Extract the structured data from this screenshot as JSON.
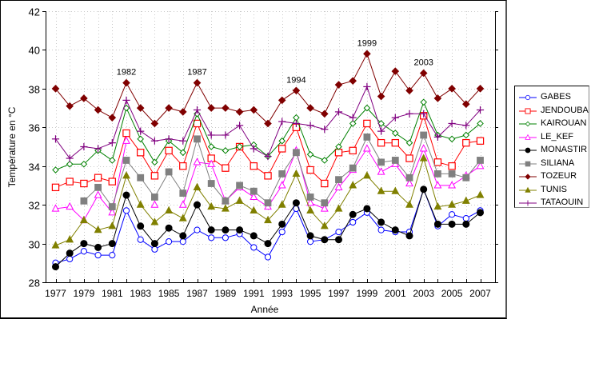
{
  "chart_data": {
    "type": "line",
    "title": "",
    "xlabel": "Année",
    "ylabel": "Température en °C",
    "xlim": [
      1977,
      2007
    ],
    "ylim": [
      28,
      42
    ],
    "x_ticks": [
      "1977",
      "1979",
      "1981",
      "1983",
      "1985",
      "1987",
      "1989",
      "1991",
      "1993",
      "1995",
      "1997",
      "1999",
      "2001",
      "2003",
      "2005",
      "2007"
    ],
    "y_ticks": [
      "28",
      "30",
      "32",
      "34",
      "36",
      "38",
      "40",
      "42"
    ],
    "grid": true,
    "legend_position": "right",
    "x": [
      1977,
      1978,
      1979,
      1980,
      1981,
      1982,
      1983,
      1984,
      1985,
      1986,
      1987,
      1988,
      1989,
      1990,
      1991,
      1992,
      1993,
      1994,
      1995,
      1996,
      1997,
      1998,
      1999,
      2000,
      2001,
      2002,
      2003,
      2004,
      2005,
      2006,
      2007
    ],
    "annotations": [
      {
        "text": "1982",
        "x": 1982,
        "y": 38.3
      },
      {
        "text": "1987",
        "x": 1987,
        "y": 38.3
      },
      {
        "text": "1994",
        "x": 1994,
        "y": 37.9
      },
      {
        "text": "1999",
        "x": 1999,
        "y": 39.8
      },
      {
        "text": "2003",
        "x": 2003,
        "y": 38.8
      }
    ],
    "series": [
      {
        "name": "GABES",
        "color": "#0000ff",
        "marker": "circle-open",
        "values": [
          29.0,
          29.2,
          29.6,
          29.4,
          29.4,
          31.7,
          30.2,
          29.7,
          30.1,
          30.1,
          30.7,
          30.3,
          30.3,
          30.5,
          29.8,
          29.3,
          30.6,
          31.8,
          30.1,
          30.2,
          30.6,
          31.1,
          31.6,
          30.7,
          30.6,
          30.6,
          32.8,
          30.9,
          31.5,
          31.3,
          31.7
        ]
      },
      {
        "name": "JENDOUBA",
        "color": "#ff0000",
        "marker": "square-open",
        "values": [
          32.9,
          33.2,
          33.1,
          33.4,
          33.2,
          35.7,
          34.7,
          33.5,
          34.8,
          34.0,
          36.2,
          34.4,
          33.9,
          35.0,
          34.0,
          33.5,
          34.9,
          36.0,
          33.8,
          33.1,
          34.7,
          34.8,
          36.2,
          35.2,
          35.2,
          34.4,
          36.6,
          34.2,
          34.0,
          35.2,
          35.3
        ]
      },
      {
        "name": "KAIROUAN",
        "color": "#008000",
        "marker": "diamond-open",
        "values": [
          33.8,
          34.1,
          34.1,
          34.8,
          34.3,
          37.0,
          35.4,
          34.2,
          35.3,
          34.7,
          36.7,
          35.0,
          34.8,
          35.0,
          35.1,
          34.5,
          35.3,
          36.5,
          34.6,
          34.3,
          35.0,
          36.2,
          37.0,
          36.2,
          35.7,
          35.2,
          37.3,
          35.6,
          35.4,
          35.6,
          36.2
        ]
      },
      {
        "name": "LE_KEF",
        "color": "#ff00ff",
        "marker": "triangle-open",
        "values": [
          31.8,
          31.9,
          31.2,
          32.5,
          31.6,
          35.3,
          null,
          32.0,
          null,
          32.0,
          34.2,
          34.1,
          32.2,
          32.9,
          32.4,
          31.9,
          33.0,
          34.8,
          32.1,
          31.8,
          32.9,
          33.8,
          34.9,
          33.7,
          34.1,
          33.1,
          34.9,
          33.0,
          33.0,
          33.5,
          34.0
        ]
      },
      {
        "name": "MONASTIR",
        "color": "#000000",
        "marker": "circle-filled",
        "values": [
          28.8,
          29.5,
          30.0,
          29.8,
          30.0,
          32.5,
          30.9,
          30.0,
          30.8,
          30.4,
          32.0,
          30.7,
          30.7,
          30.7,
          30.4,
          30.0,
          31.0,
          32.1,
          30.4,
          30.2,
          30.2,
          31.5,
          31.8,
          31.1,
          30.7,
          30.4,
          32.8,
          31.0,
          31.0,
          31.0,
          31.6
        ]
      },
      {
        "name": "SILIANA",
        "color": "#808080",
        "marker": "square-filled",
        "values": [
          null,
          null,
          32.2,
          32.9,
          31.9,
          34.3,
          33.4,
          32.4,
          33.7,
          32.6,
          35.4,
          33.1,
          32.2,
          33.0,
          32.7,
          32.1,
          33.6,
          34.7,
          32.4,
          32.1,
          33.3,
          33.9,
          35.5,
          34.2,
          34.3,
          33.4,
          35.6,
          33.6,
          33.6,
          33.4,
          34.3
        ]
      },
      {
        "name": "TOZEUR",
        "color": "#800000",
        "marker": "diamond-filled",
        "values": [
          38.0,
          37.1,
          37.5,
          36.9,
          36.5,
          38.3,
          37.0,
          36.2,
          37.0,
          36.8,
          38.3,
          37.0,
          37.0,
          36.8,
          36.9,
          36.2,
          37.4,
          37.9,
          37.0,
          36.7,
          38.2,
          38.4,
          39.8,
          37.6,
          38.9,
          37.9,
          38.8,
          37.5,
          38.0,
          37.2,
          38.0
        ]
      },
      {
        "name": "TUNIS",
        "color": "#808000",
        "marker": "triangle-filled",
        "values": [
          29.9,
          30.2,
          31.2,
          30.7,
          30.9,
          33.5,
          32.0,
          31.1,
          31.7,
          31.3,
          32.9,
          31.9,
          31.8,
          32.2,
          31.7,
          31.2,
          32.0,
          33.6,
          31.7,
          30.9,
          31.8,
          33.0,
          33.5,
          32.7,
          32.7,
          32.0,
          34.4,
          31.9,
          32.0,
          32.2,
          32.5
        ]
      },
      {
        "name": "TATAOUIN",
        "color": "#800080",
        "marker": "plus",
        "values": [
          35.4,
          34.4,
          35.0,
          34.9,
          35.2,
          37.4,
          35.8,
          35.3,
          35.4,
          35.3,
          36.9,
          35.6,
          35.6,
          36.1,
          34.9,
          34.5,
          36.3,
          36.2,
          36.1,
          35.9,
          36.8,
          36.5,
          38.1,
          35.8,
          36.5,
          36.7,
          36.7,
          35.5,
          36.2,
          36.1,
          36.9
        ]
      }
    ]
  }
}
